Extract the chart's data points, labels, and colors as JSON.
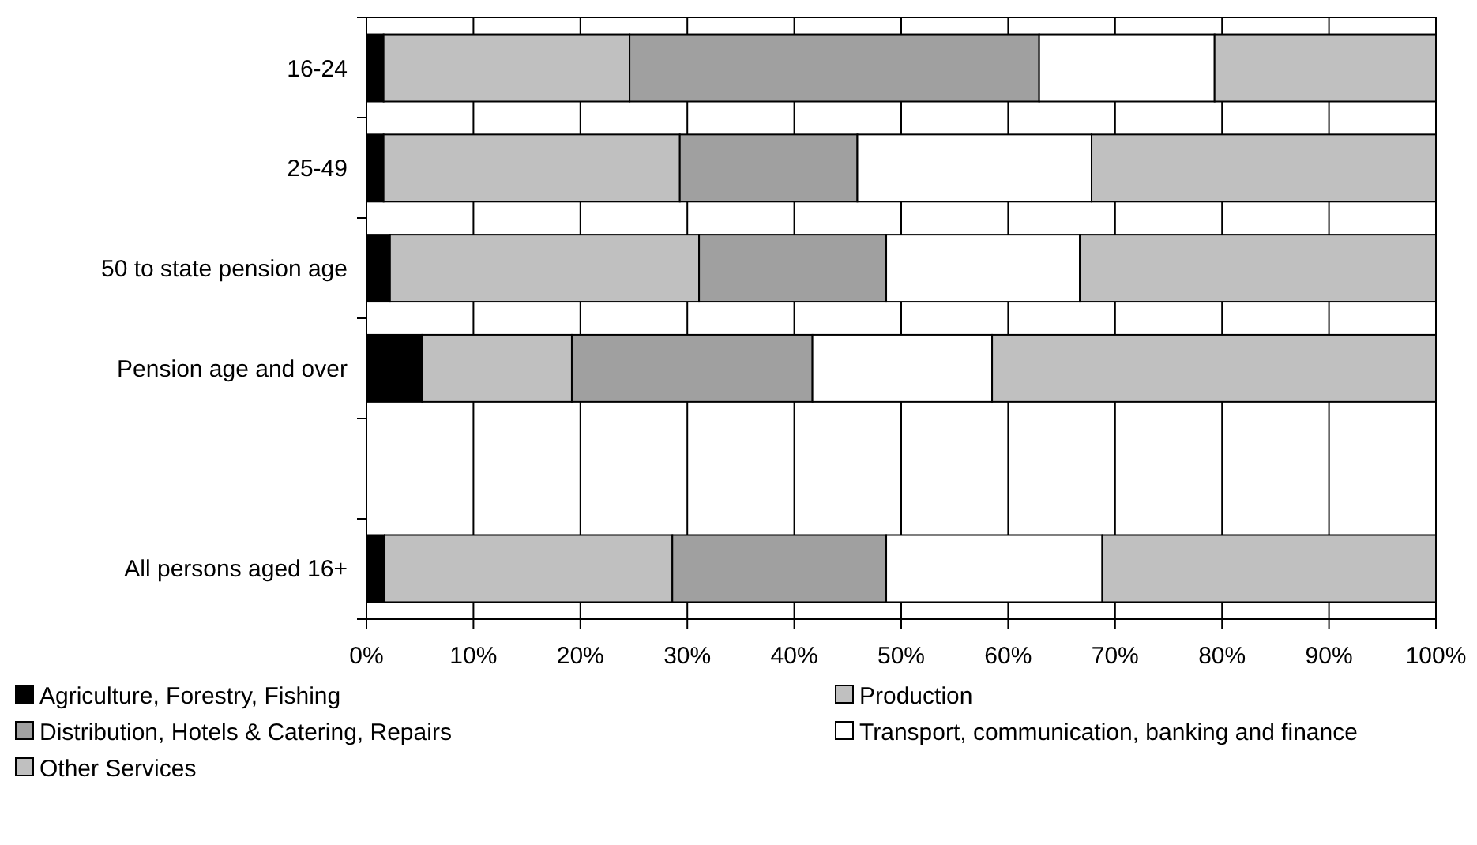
{
  "chart_data": {
    "type": "bar",
    "orientation": "horizontal",
    "stacked": true,
    "categories": [
      "16-24",
      "25-49",
      "50 to state pension age",
      "Pension age and over",
      null,
      "All persons aged 16+"
    ],
    "series": [
      {
        "name": "Agriculture, Forestry, Fishing",
        "color": "#000000",
        "values": [
          1.6,
          1.6,
          2.2,
          5.2,
          null,
          1.7
        ]
      },
      {
        "name": "Production",
        "color": "#c0c0c0",
        "values": [
          23.0,
          27.7,
          28.9,
          14.0,
          null,
          26.9
        ]
      },
      {
        "name": "Distribution, Hotels & Catering, Repairs",
        "color": "#a0a0a0",
        "values": [
          38.3,
          16.6,
          17.5,
          22.5,
          null,
          20.0
        ]
      },
      {
        "name": "Transport, communication, banking and finance",
        "color": "#ffffff",
        "values": [
          16.4,
          21.9,
          18.1,
          16.8,
          null,
          20.2
        ]
      },
      {
        "name": "Other Services",
        "color": "#c0c0c0",
        "values": [
          20.7,
          32.2,
          33.3,
          41.5,
          null,
          31.2
        ]
      }
    ],
    "xlim": [
      0,
      100
    ],
    "xticks": [
      {
        "value": 0,
        "label": "0%"
      },
      {
        "value": 10,
        "label": "10%"
      },
      {
        "value": 20,
        "label": "20%"
      },
      {
        "value": 30,
        "label": "30%"
      },
      {
        "value": 40,
        "label": "40%"
      },
      {
        "value": 50,
        "label": "50%"
      },
      {
        "value": 60,
        "label": "60%"
      },
      {
        "value": 70,
        "label": "70%"
      },
      {
        "value": 80,
        "label": "80%"
      },
      {
        "value": 90,
        "label": "90%"
      },
      {
        "value": 100,
        "label": "100%"
      }
    ],
    "grid": "x",
    "legend": "bottom"
  }
}
